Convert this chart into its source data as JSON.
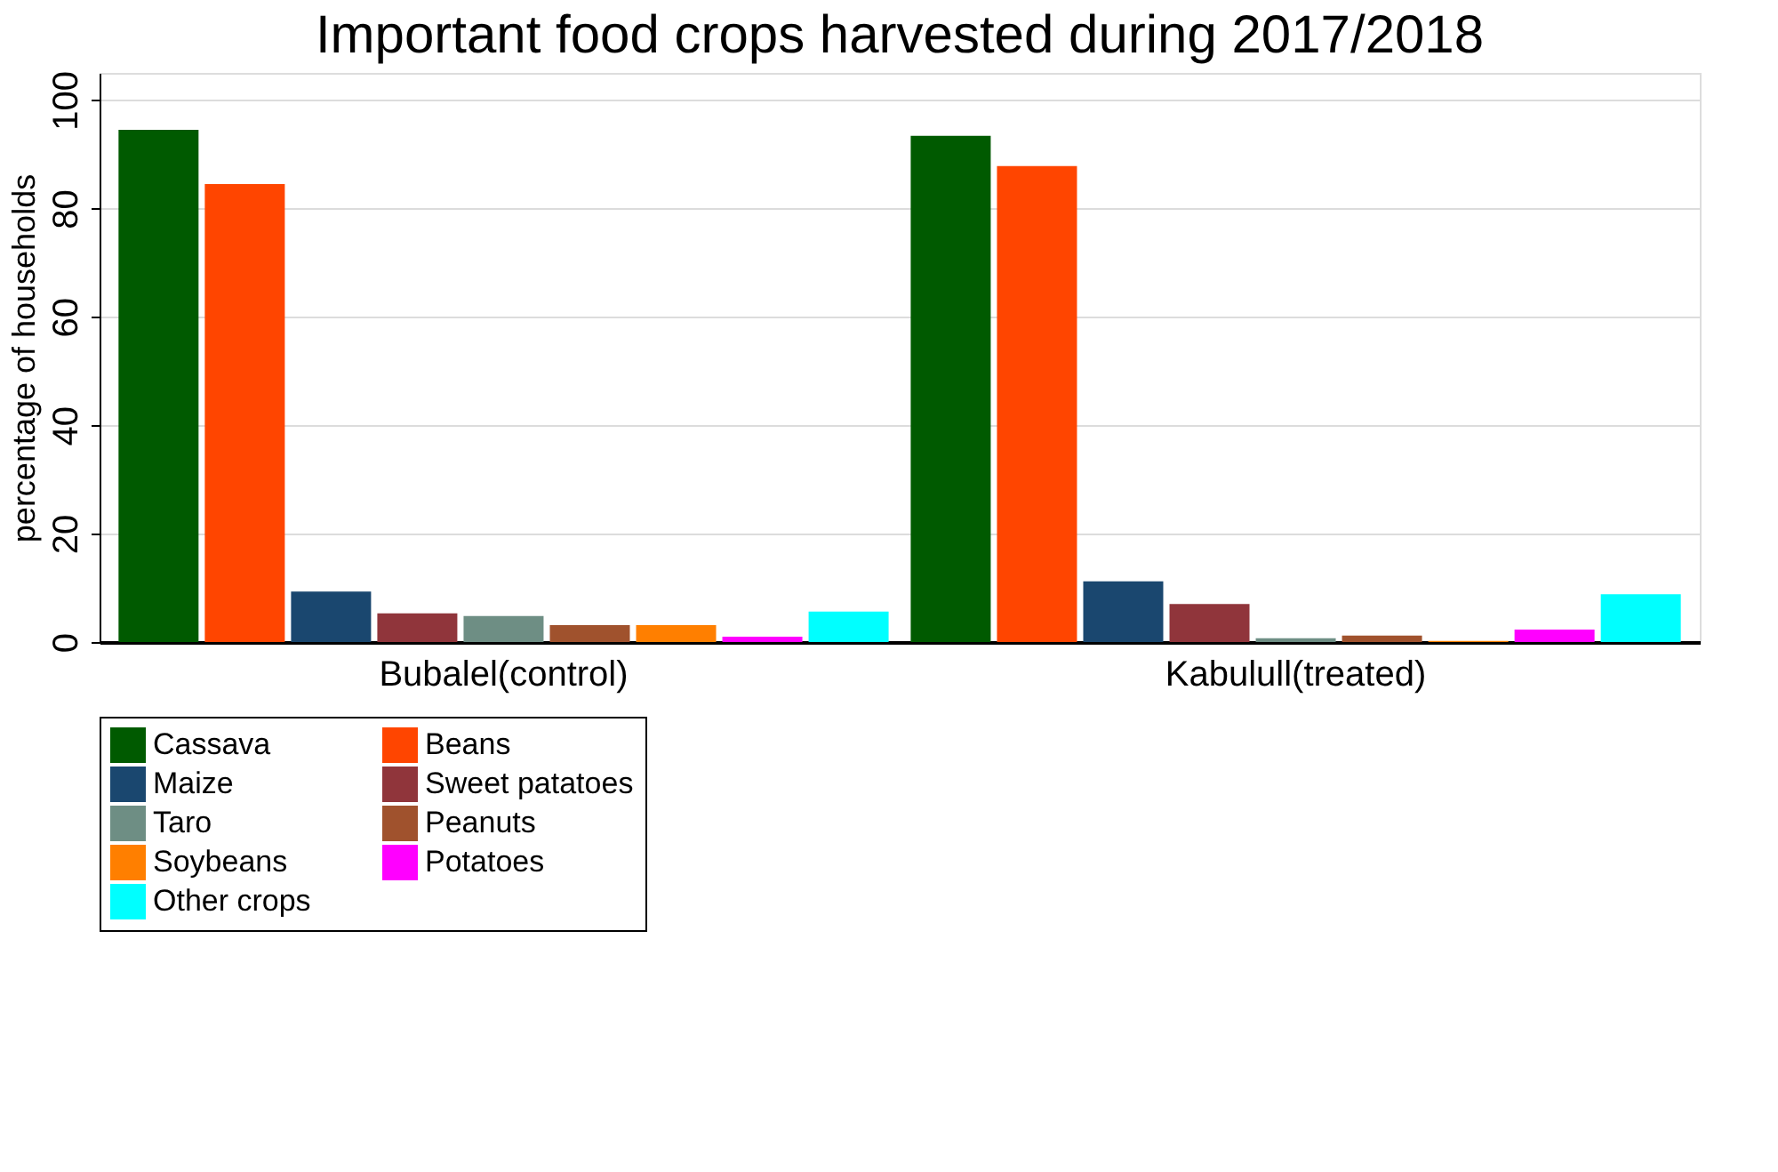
{
  "chart_data": {
    "type": "bar",
    "title": "Important food crops harvested during 2017/2018",
    "ylabel": "percentage of households",
    "categories": [
      "Bubalel(control)",
      "Kabulull(treated)"
    ],
    "series": [
      {
        "name": "Cassava",
        "color": "#005a00",
        "values": [
          94.5,
          93.4
        ]
      },
      {
        "name": "Beans",
        "color": "#ff4500",
        "values": [
          84.5,
          87.8
        ]
      },
      {
        "name": "Maize",
        "color": "#1a476f",
        "values": [
          9.3,
          11.2
        ]
      },
      {
        "name": "Sweet patatoes",
        "color": "#90353b",
        "values": [
          5.3,
          7.0
        ]
      },
      {
        "name": "Taro",
        "color": "#6e8e84",
        "values": [
          4.8,
          0.7
        ]
      },
      {
        "name": "Peanuts",
        "color": "#a0522d",
        "values": [
          3.1,
          1.2
        ]
      },
      {
        "name": "Soybeans",
        "color": "#ff7f00",
        "values": [
          3.1,
          0.2
        ]
      },
      {
        "name": "Potatoes",
        "color": "#ff00ff",
        "values": [
          1.0,
          2.3
        ]
      },
      {
        "name": "Other crops",
        "color": "#00ffff",
        "values": [
          5.6,
          8.8
        ]
      }
    ],
    "ylim": [
      0,
      105
    ],
    "yticks": [
      0,
      20,
      40,
      60,
      80,
      100
    ],
    "grid": "y",
    "legend": "bottom"
  }
}
